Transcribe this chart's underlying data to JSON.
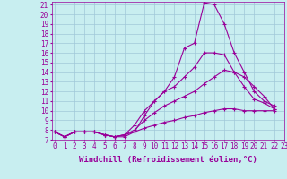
{
  "xlabel": "Windchill (Refroidissement éolien,°C)",
  "bg_color": "#c8eef0",
  "line_color": "#990099",
  "grid_color": "#a0c8d8",
  "x_min": 0,
  "x_max": 23,
  "y_min": 7,
  "y_max": 21,
  "lines": [
    [
      7.8,
      7.3,
      7.8,
      7.8,
      7.8,
      7.5,
      7.3,
      7.3,
      7.8,
      9.5,
      11.0,
      12.0,
      13.5,
      16.5,
      17.0,
      21.2,
      21.0,
      19.0,
      16.0,
      14.0,
      12.0,
      11.0,
      10.5
    ],
    [
      7.8,
      7.3,
      7.8,
      7.8,
      7.8,
      7.5,
      7.3,
      7.5,
      8.5,
      10.0,
      11.0,
      12.0,
      12.5,
      13.5,
      14.5,
      16.0,
      16.0,
      15.8,
      14.0,
      12.5,
      11.2,
      10.8,
      10.2
    ],
    [
      7.8,
      7.3,
      7.8,
      7.8,
      7.8,
      7.5,
      7.3,
      7.5,
      8.0,
      9.0,
      9.8,
      10.5,
      11.0,
      11.5,
      12.0,
      12.8,
      13.5,
      14.2,
      14.0,
      13.5,
      12.5,
      11.5,
      10.2
    ],
    [
      7.8,
      7.3,
      7.8,
      7.8,
      7.8,
      7.5,
      7.3,
      7.5,
      7.8,
      8.2,
      8.5,
      8.8,
      9.0,
      9.3,
      9.5,
      9.8,
      10.0,
      10.2,
      10.2,
      10.0,
      10.0,
      10.0,
      10.0
    ]
  ],
  "tick_fontsize": 5.5,
  "label_fontsize": 6.5
}
